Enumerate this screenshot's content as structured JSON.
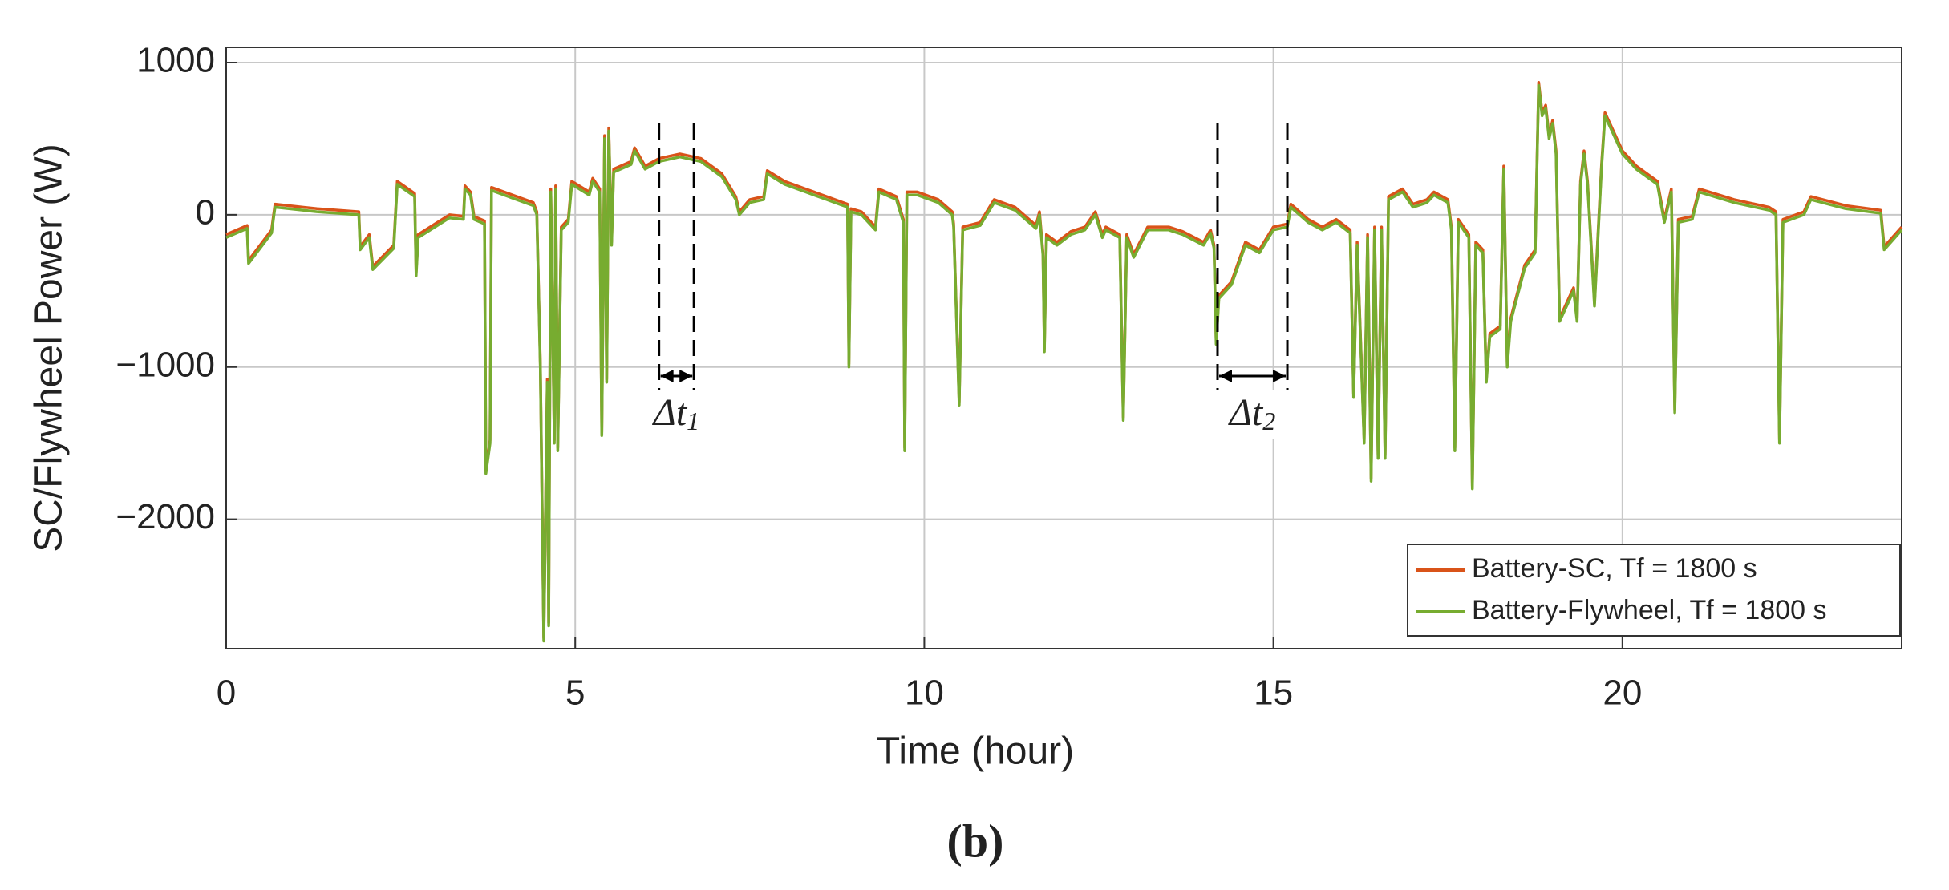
{
  "chart_data": {
    "type": "line",
    "xlabel": "Time (hour)",
    "ylabel": "SC/Flywheel Power (W)",
    "caption": "(b)",
    "xlim": [
      0,
      24
    ],
    "xticks": [
      0,
      5,
      10,
      15,
      20
    ],
    "ylim": [
      -2850,
      1100
    ],
    "yticks": [
      {
        "value": 1000,
        "label": "1000"
      },
      0,
      {
        "value": -1000,
        "label": "−1000"
      },
      {
        "value": -2000,
        "label": "−2000"
      }
    ],
    "grid": true,
    "legend": "lower right",
    "x": [
      0,
      0.3,
      0.32,
      0.65,
      0.7,
      1.3,
      1.9,
      1.92,
      2.05,
      2.1,
      2.4,
      2.45,
      2.7,
      2.72,
      2.75,
      3.2,
      3.4,
      3.42,
      3.5,
      3.55,
      3.7,
      3.72,
      3.78,
      3.8,
      4.4,
      4.45,
      4.5,
      4.55,
      4.6,
      4.62,
      4.65,
      4.7,
      4.72,
      4.75,
      4.8,
      4.9,
      4.95,
      5.2,
      5.25,
      5.35,
      5.38,
      5.42,
      5.45,
      5.48,
      5.52,
      5.55,
      5.8,
      5.85,
      6.0,
      6.2,
      6.5,
      6.8,
      7.1,
      7.3,
      7.35,
      7.5,
      7.7,
      7.75,
      8.0,
      8.3,
      8.6,
      8.9,
      8.92,
      8.95,
      9.1,
      9.3,
      9.35,
      9.6,
      9.7,
      9.72,
      9.75,
      9.9,
      10.2,
      10.4,
      10.42,
      10.5,
      10.55,
      10.8,
      11.0,
      11.3,
      11.6,
      11.65,
      11.7,
      11.72,
      11.75,
      11.9,
      12.1,
      12.3,
      12.45,
      12.55,
      12.6,
      12.8,
      12.85,
      12.9,
      13.0,
      13.2,
      13.5,
      13.7,
      14.0,
      14.1,
      14.15,
      14.18,
      14.22,
      14.4,
      14.6,
      14.8,
      15.0,
      15.2,
      15.25,
      15.5,
      15.7,
      15.9,
      16.1,
      16.15,
      16.2,
      16.3,
      16.35,
      16.4,
      16.45,
      16.5,
      16.55,
      16.6,
      16.65,
      16.85,
      17.0,
      17.2,
      17.3,
      17.5,
      17.55,
      17.6,
      17.65,
      17.8,
      17.85,
      17.9,
      18.0,
      18.05,
      18.1,
      18.25,
      18.3,
      18.35,
      18.4,
      18.6,
      18.75,
      18.8,
      18.85,
      18.9,
      18.95,
      19.0,
      19.05,
      19.1,
      19.2,
      19.3,
      19.35,
      19.4,
      19.45,
      19.5,
      19.55,
      19.6,
      19.7,
      19.75,
      19.85,
      20.0,
      20.2,
      20.5,
      20.6,
      20.7,
      20.75,
      20.8,
      21.0,
      21.1,
      21.6,
      22.1,
      22.2,
      22.25,
      22.3,
      22.6,
      22.7,
      23.2,
      23.7,
      23.75,
      24.0
    ],
    "series": [
      {
        "name": "Battery-SC, Tf = 1800 s",
        "color": "#d95319",
        "values": [
          -130,
          -70,
          -300,
          -100,
          70,
          40,
          20,
          -210,
          -130,
          -340,
          -200,
          220,
          140,
          -380,
          -130,
          0,
          -10,
          190,
          150,
          -10,
          -40,
          -1680,
          -1480,
          180,
          80,
          20,
          -980,
          -2780,
          -1080,
          -2680,
          170,
          -1480,
          190,
          -1530,
          -80,
          -30,
          220,
          150,
          240,
          170,
          -1430,
          520,
          -1080,
          570,
          -180,
          300,
          350,
          440,
          320,
          370,
          400,
          370,
          270,
          120,
          20,
          100,
          120,
          290,
          220,
          170,
          120,
          70,
          -980,
          40,
          20,
          -80,
          170,
          120,
          -30,
          -1530,
          150,
          150,
          100,
          20,
          -60,
          -1230,
          -80,
          -50,
          100,
          50,
          -70,
          20,
          -250,
          -880,
          -130,
          -180,
          -110,
          -80,
          20,
          -130,
          -80,
          -130,
          -1330,
          -130,
          -260,
          -80,
          -80,
          -110,
          -180,
          -100,
          -200,
          -830,
          -530,
          -440,
          -180,
          -230,
          -80,
          -60,
          70,
          -30,
          -80,
          -30,
          -100,
          -1180,
          -180,
          -1480,
          -130,
          -1730,
          -80,
          -1580,
          -80,
          -1580,
          120,
          170,
          70,
          100,
          150,
          100,
          -80,
          -1530,
          -30,
          -130,
          -1780,
          -180,
          -230,
          -1080,
          -780,
          -730,
          320,
          -980,
          -680,
          -330,
          -230,
          870,
          670,
          720,
          520,
          620,
          420,
          -680,
          -580,
          -480,
          -680,
          220,
          420,
          220,
          -180,
          -580,
          320,
          670,
          570,
          420,
          320,
          220,
          -30,
          170,
          -1280,
          -30,
          -10,
          170,
          100,
          50,
          20,
          -1480,
          -30,
          20,
          120,
          60,
          30,
          -210,
          -80
        ]
      },
      {
        "name": "Battery-Flywheel, Tf = 1800 s",
        "color": "#77ac30",
        "values": [
          -150,
          -90,
          -320,
          -120,
          50,
          20,
          0,
          -230,
          -150,
          -360,
          -220,
          200,
          120,
          -400,
          -150,
          -20,
          -30,
          170,
          130,
          -30,
          -60,
          -1700,
          -1500,
          160,
          60,
          0,
          -1000,
          -2800,
          -1100,
          -2700,
          150,
          -1500,
          170,
          -1550,
          -100,
          -50,
          200,
          130,
          220,
          150,
          -1450,
          500,
          -1100,
          550,
          -200,
          280,
          330,
          420,
          300,
          350,
          380,
          350,
          250,
          100,
          0,
          80,
          100,
          270,
          200,
          150,
          100,
          50,
          -1000,
          20,
          0,
          -100,
          150,
          100,
          -50,
          -1550,
          130,
          130,
          80,
          0,
          -80,
          -1250,
          -100,
          -70,
          80,
          30,
          -90,
          0,
          -270,
          -900,
          -150,
          -200,
          -130,
          -100,
          0,
          -150,
          -100,
          -150,
          -1350,
          -150,
          -280,
          -100,
          -100,
          -130,
          -200,
          -120,
          -220,
          -850,
          -550,
          -460,
          -200,
          -250,
          -100,
          -80,
          50,
          -50,
          -100,
          -50,
          -120,
          -1200,
          -200,
          -1500,
          -150,
          -1750,
          -100,
          -1600,
          -100,
          -1600,
          100,
          150,
          50,
          80,
          130,
          80,
          -100,
          -1550,
          -50,
          -150,
          -1800,
          -200,
          -250,
          -1100,
          -800,
          -750,
          300,
          -1000,
          -700,
          -350,
          -250,
          850,
          650,
          700,
          500,
          600,
          400,
          -700,
          -600,
          -500,
          -700,
          200,
          400,
          200,
          -200,
          -600,
          300,
          650,
          550,
          400,
          300,
          200,
          -50,
          150,
          -1300,
          -50,
          -30,
          150,
          80,
          30,
          0,
          -1500,
          -50,
          0,
          100,
          40,
          10,
          -230,
          -100
        ]
      }
    ],
    "annotations": [
      {
        "text": "Δt",
        "sub": "1",
        "start": 6.2,
        "end": 6.7
      },
      {
        "text": "Δt",
        "sub": "2",
        "start": 14.2,
        "end": 15.2
      }
    ]
  }
}
